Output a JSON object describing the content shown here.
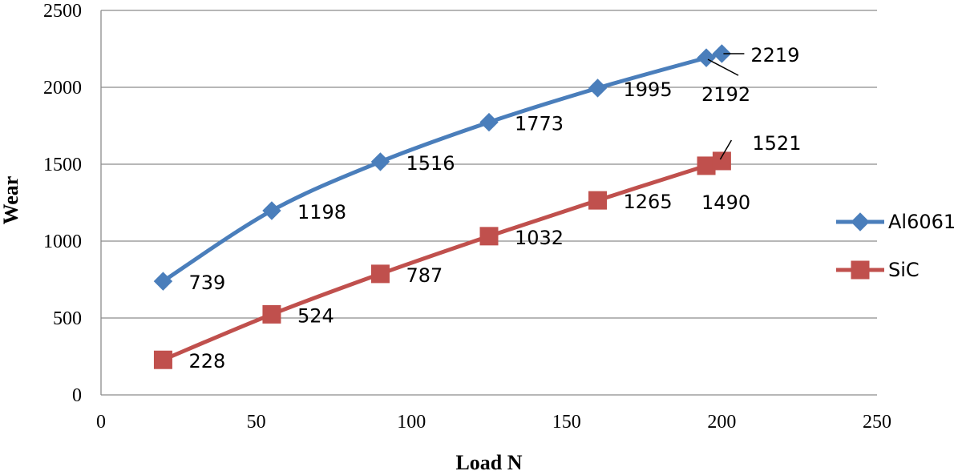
{
  "chart_data": {
    "type": "line",
    "xlabel": "Load N",
    "ylabel": "Wear",
    "xlim": [
      0,
      250
    ],
    "ylim": [
      0,
      2500
    ],
    "xticks": [
      0,
      50,
      100,
      150,
      200,
      250
    ],
    "yticks": [
      0,
      500,
      1000,
      1500,
      2000,
      2500
    ],
    "grid": "horizontal",
    "legend": "right",
    "series": [
      {
        "name": "Al6061",
        "color": "#4a7ebb",
        "marker": "diamond",
        "x": [
          20,
          55,
          90,
          125,
          160,
          195,
          200
        ],
        "y": [
          739,
          1198,
          1516,
          1773,
          1995,
          2192,
          2219
        ],
        "labels": [
          "739",
          "1198",
          "1516",
          "1773",
          "1995",
          "2192",
          "2219"
        ]
      },
      {
        "name": "SiC",
        "color": "#c0504d",
        "marker": "square",
        "x": [
          20,
          55,
          90,
          125,
          160,
          195,
          200
        ],
        "y": [
          228,
          524,
          787,
          1032,
          1265,
          1490,
          1521
        ],
        "labels": [
          "228",
          "524",
          "787",
          "1032",
          "1265",
          "1490",
          "1521"
        ]
      }
    ]
  }
}
